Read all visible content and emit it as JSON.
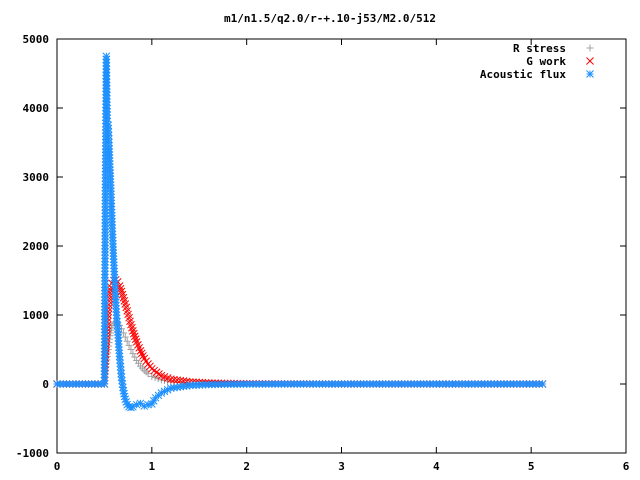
{
  "chart_data": {
    "type": "scatter",
    "title": "m1/n1.5/q2.0/r-+.10-j53/M2.0/512",
    "xlabel": "",
    "ylabel": "",
    "xlim": [
      0,
      6
    ],
    "ylim": [
      -1000,
      5000
    ],
    "x_ticks": [
      "0",
      "1",
      "2",
      "3",
      "4",
      "5",
      "6"
    ],
    "y_ticks": [
      "-1000",
      "0",
      "1000",
      "2000",
      "3000",
      "4000",
      "5000"
    ],
    "grid": false,
    "legend_position": "top-right",
    "series": [
      {
        "name": "R stress",
        "marker": "plus",
        "color": "#a0a0a0",
        "x": [
          0.0,
          0.5,
          0.51,
          0.52,
          0.53,
          0.54,
          0.55,
          0.56,
          0.57,
          0.58,
          0.6,
          0.62,
          0.64,
          0.66,
          0.68,
          0.7,
          0.72,
          0.74,
          0.76,
          0.78,
          0.8,
          0.84,
          0.88,
          0.92,
          0.96,
          1.0,
          1.1,
          1.2,
          1.4,
          1.6,
          1.8,
          2.0,
          2.5,
          3.0,
          4.0,
          5.12
        ],
        "y": [
          0,
          0,
          200,
          300,
          400,
          500,
          600,
          700,
          780,
          850,
          880,
          900,
          880,
          850,
          800,
          740,
          680,
          620,
          560,
          500,
          440,
          340,
          260,
          200,
          150,
          110,
          60,
          30,
          12,
          5,
          2,
          1,
          0,
          0,
          0,
          0
        ]
      },
      {
        "name": "G work",
        "marker": "cross",
        "color": "#ff0000",
        "x": [
          0.0,
          0.5,
          0.51,
          0.52,
          0.53,
          0.54,
          0.55,
          0.56,
          0.57,
          0.58,
          0.6,
          0.62,
          0.64,
          0.66,
          0.68,
          0.7,
          0.72,
          0.74,
          0.76,
          0.78,
          0.8,
          0.84,
          0.88,
          0.92,
          0.96,
          1.0,
          1.1,
          1.2,
          1.4,
          1.6,
          1.8,
          2.0,
          2.5,
          3.0,
          4.0,
          5.12
        ],
        "y": [
          0,
          0,
          380,
          620,
          850,
          1050,
          1200,
          1320,
          1400,
          1460,
          1500,
          1510,
          1480,
          1420,
          1340,
          1250,
          1160,
          1060,
          960,
          860,
          770,
          610,
          480,
          370,
          290,
          220,
          120,
          70,
          30,
          15,
          8,
          5,
          2,
          0,
          0,
          0
        ]
      },
      {
        "name": "Acoustic flux",
        "marker": "star",
        "color": "#1e90ff",
        "x": [
          0.0,
          0.5,
          0.51,
          0.52,
          0.53,
          0.54,
          0.55,
          0.56,
          0.57,
          0.58,
          0.59,
          0.6,
          0.61,
          0.62,
          0.63,
          0.64,
          0.65,
          0.66,
          0.68,
          0.7,
          0.72,
          0.74,
          0.76,
          0.78,
          0.8,
          0.84,
          0.88,
          0.92,
          0.96,
          1.0,
          1.04,
          1.1,
          1.2,
          1.4,
          1.6,
          1.8,
          2.0,
          2.5,
          3.0,
          4.0,
          5.12
        ],
        "y": [
          0,
          0,
          2800,
          4750,
          3800,
          3750,
          3450,
          3100,
          2750,
          2350,
          2030,
          1720,
          1450,
          1180,
          950,
          800,
          580,
          400,
          100,
          -100,
          -220,
          -300,
          -330,
          -340,
          -330,
          -300,
          -280,
          -320,
          -300,
          -290,
          -200,
          -130,
          -60,
          -20,
          -8,
          -3,
          -1,
          0,
          0,
          0,
          0
        ]
      }
    ]
  }
}
